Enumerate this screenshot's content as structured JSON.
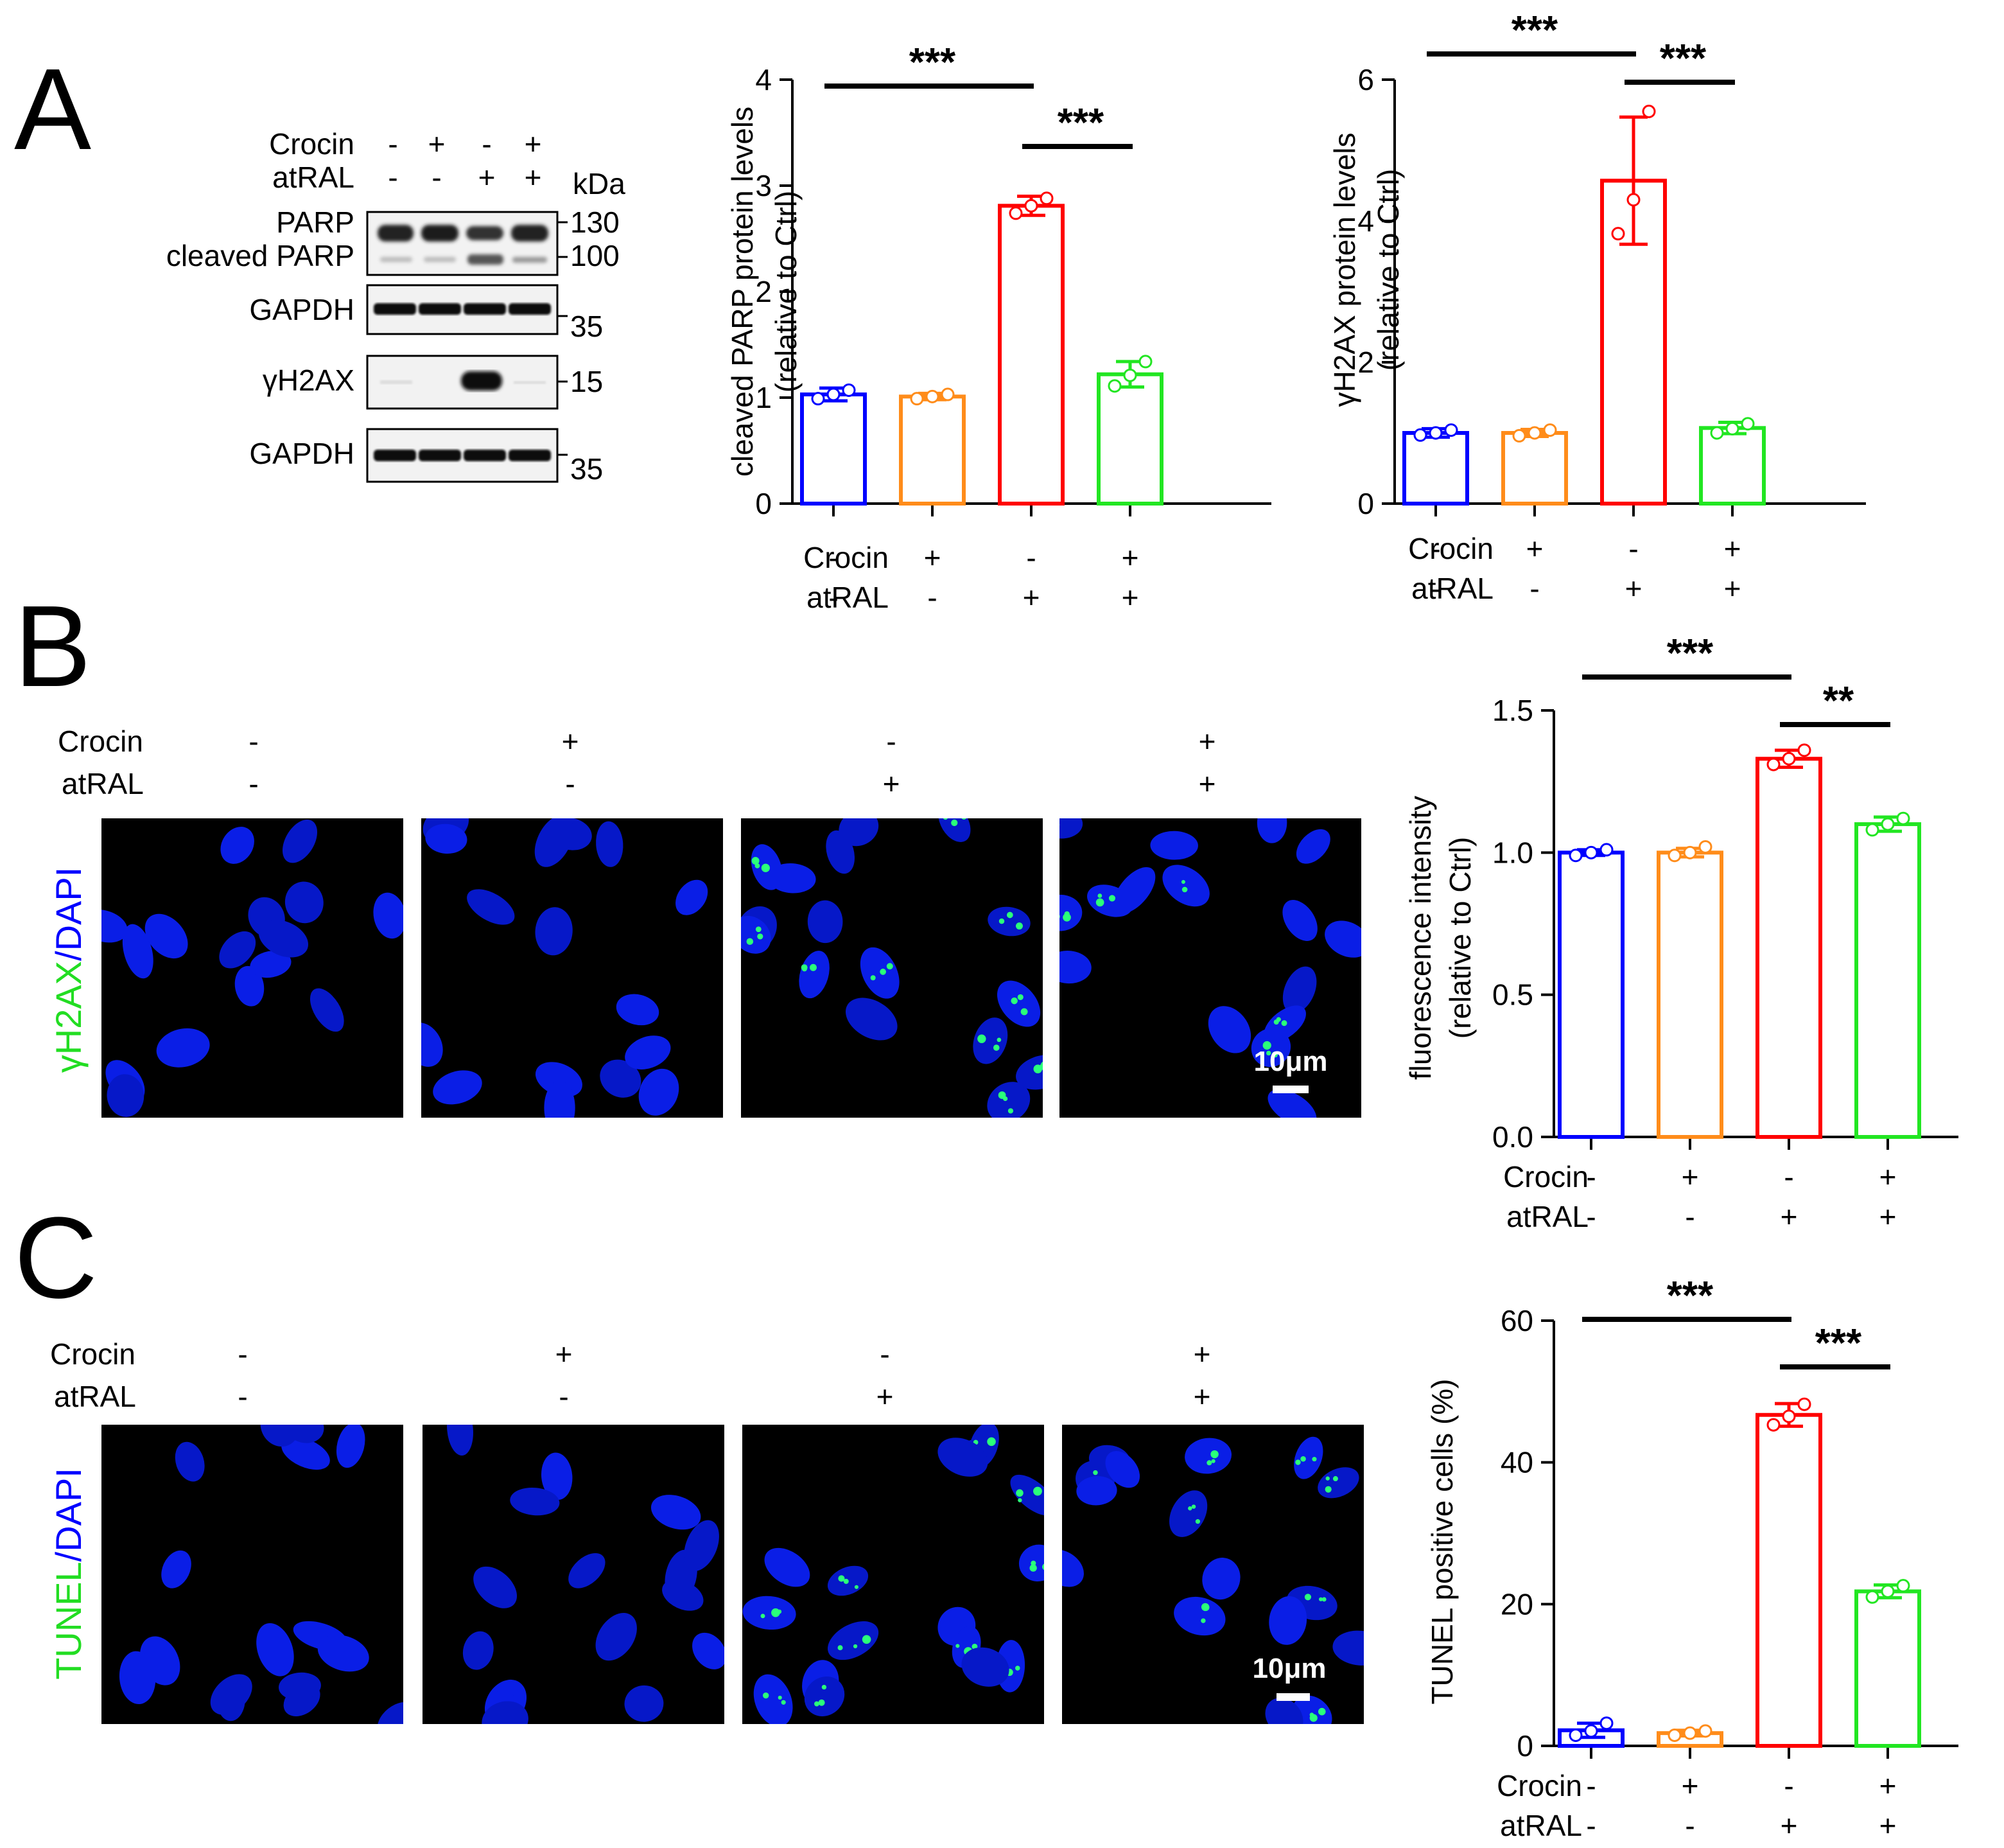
{
  "panel_labels": [
    "A",
    "B",
    "C"
  ],
  "conditions": {
    "row1_label": "Crocin",
    "row2_label": "atRAL",
    "row1": [
      "-",
      "+",
      "-",
      "+"
    ],
    "row2": [
      "-",
      "-",
      "+",
      "+"
    ]
  },
  "colors": [
    "#0000ff",
    "#ff8c1a",
    "#ff0000",
    "#22e622"
  ],
  "western_blot": {
    "kda_label": "kDa",
    "blots": [
      {
        "labels": [
          "PARP",
          "cleaved PARP"
        ],
        "markers": [
          "130",
          "100"
        ]
      },
      {
        "labels": [
          "GAPDH"
        ],
        "markers": [
          "35"
        ]
      },
      {
        "labels": [
          "γH2AX"
        ],
        "markers": [
          "15"
        ]
      },
      {
        "labels": [
          "GAPDH"
        ],
        "markers": [
          "35"
        ]
      }
    ]
  },
  "micrographs": {
    "B_stain": {
      "green": "γH2AX",
      "sep": "/",
      "blue": "DAPI"
    },
    "C_stain": {
      "green": "TUNEL",
      "sep": "/",
      "blue": "DAPI"
    },
    "scalebar_label": "10μm"
  },
  "chart_data": [
    {
      "id": "cleaved-parp",
      "type": "bar",
      "categories": [
        "Ctrl",
        "Crocin",
        "atRAL",
        "Crocin+atRAL"
      ],
      "values": [
        1.03,
        1.01,
        2.81,
        1.22
      ],
      "errors": [
        0.06,
        0.03,
        0.09,
        0.12
      ],
      "points": [
        [
          0.99,
          1.03,
          1.07
        ],
        [
          0.99,
          1.01,
          1.03
        ],
        [
          2.74,
          2.81,
          2.88
        ],
        [
          1.11,
          1.21,
          1.34
        ]
      ],
      "ylabel": "cleaved PARP protein levels",
      "ylabel2": "(relative to Ctrl)",
      "ylim": [
        0,
        4
      ],
      "yticks": [
        "0",
        "1",
        "2",
        "3",
        "4"
      ],
      "brackets": [
        {
          "from": 0,
          "to": 2,
          "label": "***"
        },
        {
          "from": 2,
          "to": 3,
          "label": "***"
        }
      ]
    },
    {
      "id": "gh2ax",
      "type": "bar",
      "categories": [
        "Ctrl",
        "Crocin",
        "atRAL",
        "Crocin+atRAL"
      ],
      "values": [
        1.0,
        1.0,
        4.57,
        1.07
      ],
      "errors": [
        0.06,
        0.05,
        0.9,
        0.08
      ],
      "points": [
        [
          0.97,
          1.0,
          1.04
        ],
        [
          0.96,
          1.0,
          1.04
        ],
        [
          3.82,
          4.3,
          5.55
        ],
        [
          1.0,
          1.06,
          1.13
        ]
      ],
      "ylabel": "γH2AX protein levels",
      "ylabel2": "(relative to Ctrl)",
      "ylim": [
        0,
        6
      ],
      "yticks": [
        "0",
        "2",
        "4",
        "6"
      ],
      "brackets": [
        {
          "from": 0,
          "to": 2,
          "label": "***"
        },
        {
          "from": 2,
          "to": 3,
          "label": "***"
        }
      ]
    },
    {
      "id": "fluorescence",
      "type": "bar",
      "categories": [
        "Ctrl",
        "Crocin",
        "atRAL",
        "Crocin+atRAL"
      ],
      "values": [
        1.0,
        1.0,
        1.33,
        1.1
      ],
      "errors": [
        0.01,
        0.015,
        0.03,
        0.025
      ],
      "points": [
        [
          0.99,
          1.0,
          1.01
        ],
        [
          0.99,
          1.0,
          1.02
        ],
        [
          1.31,
          1.33,
          1.36
        ],
        [
          1.08,
          1.1,
          1.12
        ]
      ],
      "ylabel": "fluorescence intensity",
      "ylabel2": "(relative to Ctrl)",
      "ylim": [
        0,
        1.5
      ],
      "yticks": [
        "0.0",
        "0.5",
        "1.0",
        "1.5"
      ],
      "brackets": [
        {
          "from": 0,
          "to": 2,
          "label": "***"
        },
        {
          "from": 2,
          "to": 3,
          "label": "**"
        }
      ]
    },
    {
      "id": "tunel",
      "type": "bar",
      "categories": [
        "Ctrl",
        "Crocin",
        "atRAL",
        "Crocin+atRAL"
      ],
      "values": [
        2.2,
        1.8,
        46.7,
        21.8
      ],
      "errors": [
        1.0,
        0.4,
        1.6,
        0.9
      ],
      "points": [
        [
          1.5,
          2.1,
          3.2
        ],
        [
          1.5,
          1.8,
          2.1
        ],
        [
          45.3,
          46.5,
          48.2
        ],
        [
          21.0,
          21.8,
          22.6
        ]
      ],
      "ylabel": "TUNEL positive cells (%)",
      "ylabel2": "",
      "ylim": [
        0,
        60
      ],
      "yticks": [
        "0",
        "20",
        "40",
        "60"
      ],
      "brackets": [
        {
          "from": 0,
          "to": 2,
          "label": "***"
        },
        {
          "from": 2,
          "to": 3,
          "label": "***"
        }
      ]
    }
  ]
}
